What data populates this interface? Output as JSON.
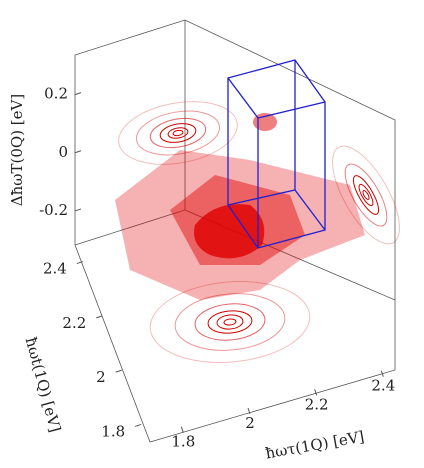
{
  "chart_data": {
    "type": "isosurface",
    "xlabel": "ħωτ(1Q) [eV]",
    "ylabel": "ħωt(1Q) [eV]",
    "zlabel": "ΔħωT(0Q) [eV]",
    "xlim": [
      1.7,
      2.45
    ],
    "xticks": [
      1.8,
      2,
      2.2,
      2.4
    ],
    "ylim": [
      1.75,
      2.45
    ],
    "yticks": [
      1.8,
      2,
      2.2,
      2.4
    ],
    "zlim": [
      -0.3,
      0.35
    ],
    "zticks": [
      -0.2,
      0,
      0.2
    ],
    "color": "#e00000",
    "box_color": "#2020d0"
  }
}
